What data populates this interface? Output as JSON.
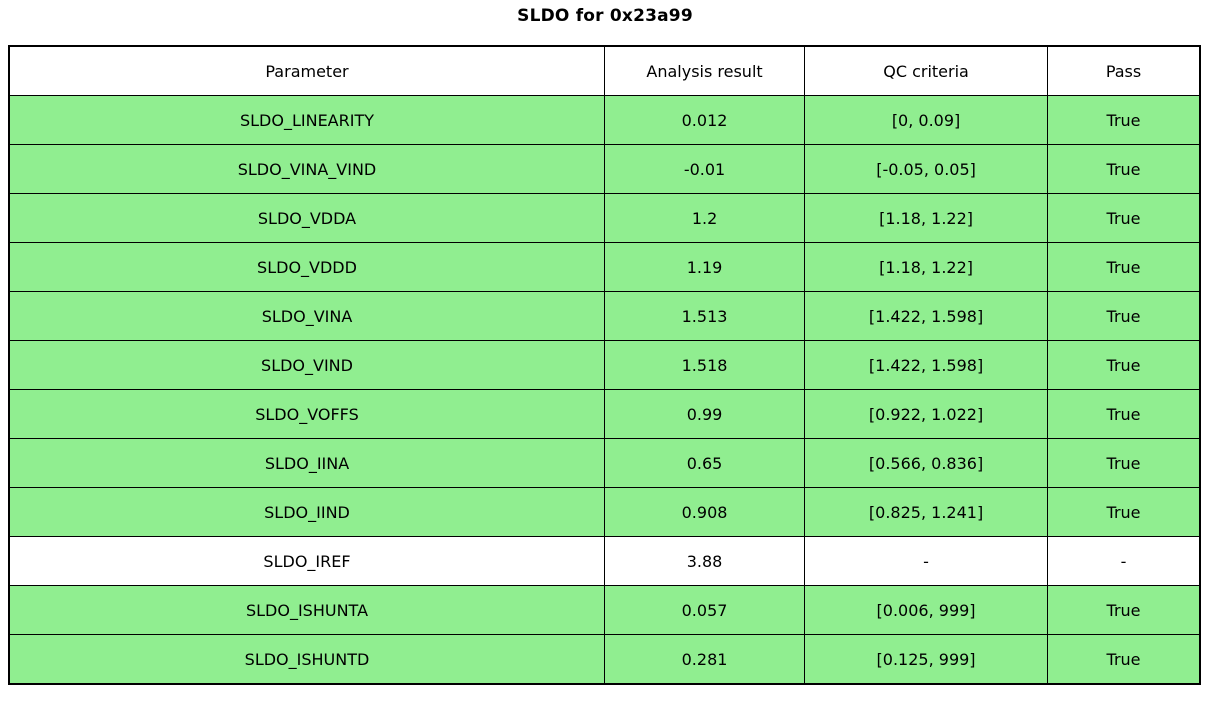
{
  "title": "SLDO for 0x23a99",
  "colors": {
    "pass_row_green": "#90ee90",
    "no_qc_row_white": "#ffffff",
    "border_black": "#000000"
  },
  "chart_data": {
    "type": "table",
    "title": "SLDO for 0x23a99",
    "columns": [
      "Parameter",
      "Analysis result",
      "QC criteria",
      "Pass"
    ],
    "rows": [
      {
        "parameter": "SLDO_LINEARITY",
        "result": "0.012",
        "criteria": "[0, 0.09]",
        "pass": "True",
        "highlight": true
      },
      {
        "parameter": "SLDO_VINA_VIND",
        "result": "-0.01",
        "criteria": "[-0.05, 0.05]",
        "pass": "True",
        "highlight": true
      },
      {
        "parameter": "SLDO_VDDA",
        "result": "1.2",
        "criteria": "[1.18, 1.22]",
        "pass": "True",
        "highlight": true
      },
      {
        "parameter": "SLDO_VDDD",
        "result": "1.19",
        "criteria": "[1.18, 1.22]",
        "pass": "True",
        "highlight": true
      },
      {
        "parameter": "SLDO_VINA",
        "result": "1.513",
        "criteria": "[1.422, 1.598]",
        "pass": "True",
        "highlight": true
      },
      {
        "parameter": "SLDO_VIND",
        "result": "1.518",
        "criteria": "[1.422, 1.598]",
        "pass": "True",
        "highlight": true
      },
      {
        "parameter": "SLDO_VOFFS",
        "result": "0.99",
        "criteria": "[0.922, 1.022]",
        "pass": "True",
        "highlight": true
      },
      {
        "parameter": "SLDO_IINA",
        "result": "0.65",
        "criteria": "[0.566, 0.836]",
        "pass": "True",
        "highlight": true
      },
      {
        "parameter": "SLDO_IIND",
        "result": "0.908",
        "criteria": "[0.825, 1.241]",
        "pass": "True",
        "highlight": true
      },
      {
        "parameter": "SLDO_IREF",
        "result": "3.88",
        "criteria": "-",
        "pass": "-",
        "highlight": false
      },
      {
        "parameter": "SLDO_ISHUNTA",
        "result": "0.057",
        "criteria": "[0.006, 999]",
        "pass": "True",
        "highlight": true
      },
      {
        "parameter": "SLDO_ISHUNTD",
        "result": "0.281",
        "criteria": "[0.125, 999]",
        "pass": "True",
        "highlight": true
      }
    ]
  }
}
